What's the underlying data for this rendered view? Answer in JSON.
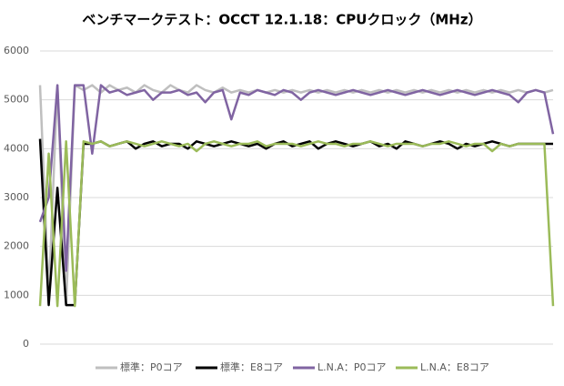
{
  "chart_data": {
    "type": "line",
    "title": "ベンチマークテスト：OCCT 12.1.18：CPUクロック（MHz）",
    "ylim": [
      0,
      6000
    ],
    "yticks": [
      0,
      1000,
      2000,
      3000,
      4000,
      5000,
      6000
    ],
    "grid": true,
    "series": [
      {
        "name": "標準：P0コア",
        "color": "#bfbfbf",
        "values": [
          5300,
          1000,
          5300,
          800,
          5300,
          5200,
          5300,
          5150,
          5300,
          5200,
          5250,
          5150,
          5300,
          5200,
          5150,
          5300,
          5200,
          5150,
          5300,
          5200,
          5150,
          5250,
          5150,
          5200,
          5150,
          5200,
          5150,
          5200,
          5150,
          5200,
          5150,
          5200,
          5150,
          5200,
          5150,
          5200,
          5150,
          5200,
          5150,
          5200,
          5150,
          5200,
          5150,
          5200,
          5150,
          5200,
          5150,
          5200,
          5150,
          5200,
          5150,
          5200,
          5150,
          5200,
          5150,
          5200,
          5150,
          5200,
          5150,
          5200
        ]
      },
      {
        "name": "標準：E8コア",
        "color": "#000000",
        "values": [
          4200,
          800,
          3200,
          800,
          800,
          4100,
          4100,
          4150,
          4050,
          4100,
          4150,
          4000,
          4100,
          4150,
          4050,
          4100,
          4100,
          4000,
          4150,
          4100,
          4050,
          4100,
          4150,
          4100,
          4050,
          4100,
          4000,
          4100,
          4150,
          4050,
          4100,
          4150,
          4000,
          4100,
          4150,
          4100,
          4050,
          4100,
          4150,
          4050,
          4100,
          4000,
          4150,
          4100,
          4050,
          4100,
          4150,
          4100,
          4000,
          4100,
          4050,
          4100,
          4150,
          4100,
          4050,
          4100,
          4100,
          4100,
          4100,
          4100
        ]
      },
      {
        "name": "L.N.A：P0コア",
        "color": "#8064a2",
        "values": [
          2500,
          3000,
          5300,
          1500,
          5300,
          5300,
          3900,
          5300,
          5150,
          5200,
          5100,
          5150,
          5200,
          5000,
          5150,
          5150,
          5200,
          5100,
          5150,
          4950,
          5150,
          5200,
          4600,
          5150,
          5100,
          5200,
          5150,
          5100,
          5200,
          5150,
          5000,
          5150,
          5200,
          5150,
          5100,
          5150,
          5200,
          5150,
          5100,
          5150,
          5200,
          5150,
          5100,
          5150,
          5200,
          5150,
          5100,
          5150,
          5200,
          5150,
          5100,
          5150,
          5200,
          5150,
          5100,
          4950,
          5150,
          5200,
          5150,
          4300
        ]
      },
      {
        "name": "L.N.A：E8コア",
        "color": "#9bbb59",
        "values": [
          780,
          3900,
          780,
          4150,
          780,
          4150,
          4100,
          4150,
          4050,
          4100,
          4150,
          4100,
          4050,
          4100,
          4150,
          4100,
          4050,
          4100,
          3950,
          4100,
          4150,
          4100,
          4050,
          4100,
          4100,
          4150,
          4050,
          4100,
          4100,
          4100,
          4050,
          4100,
          4150,
          4100,
          4100,
          4050,
          4100,
          4100,
          4150,
          4100,
          4050,
          4100,
          4100,
          4100,
          4050,
          4100,
          4100,
          4150,
          4100,
          4050,
          4100,
          4100,
          3950,
          4100,
          4050,
          4100,
          4100,
          4100,
          4100,
          780
        ]
      }
    ]
  }
}
